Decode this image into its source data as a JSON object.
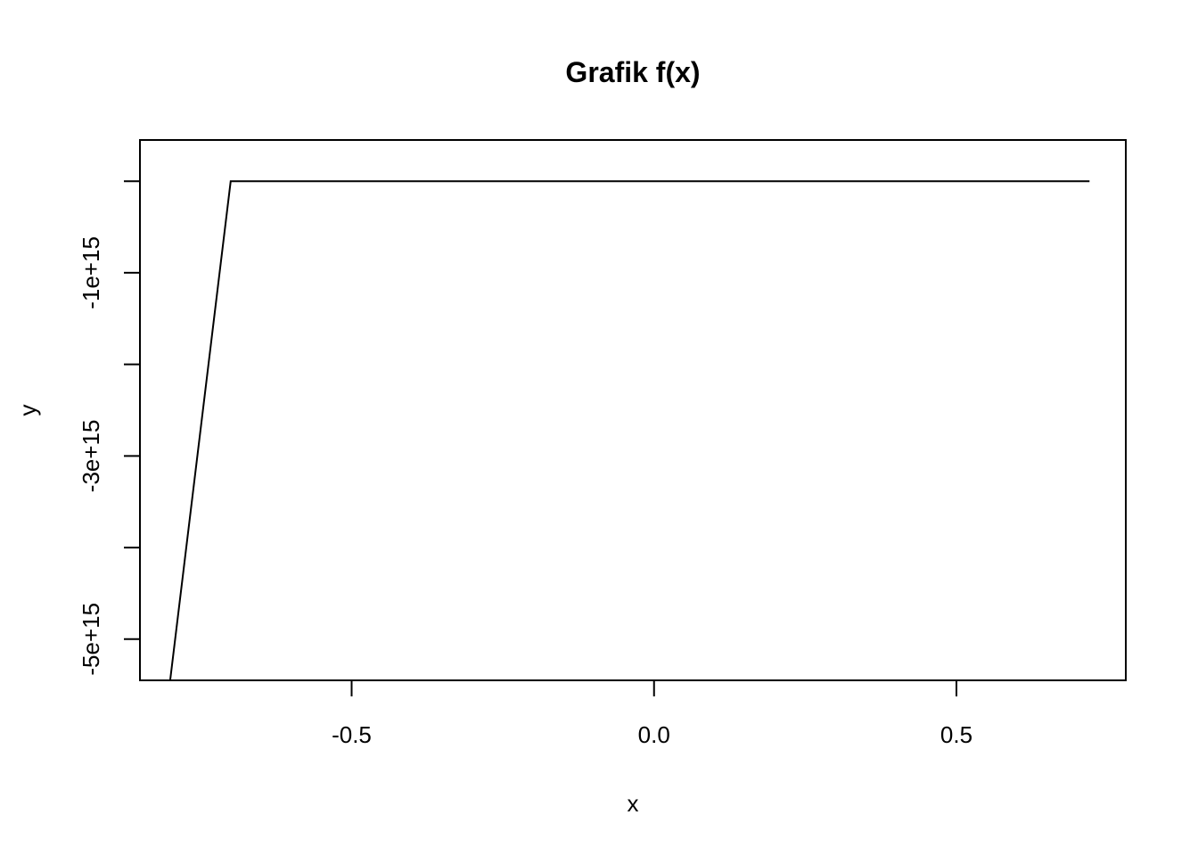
{
  "chart_data": {
    "type": "line",
    "title": "Grafik f(x)",
    "xlabel": "x",
    "ylabel": "y",
    "xlim": [
      -0.85,
      0.78
    ],
    "ylim": [
      -5450000000000000.0,
      450000000000000.0
    ],
    "x_ticks": [
      {
        "value": -0.5,
        "label": "-0.5"
      },
      {
        "value": 0.0,
        "label": "0.0"
      },
      {
        "value": 0.5,
        "label": "0.5"
      }
    ],
    "y_ticks": [
      {
        "value": 0,
        "label": ""
      },
      {
        "value": -1000000000000000.0,
        "label": "-1e+15"
      },
      {
        "value": -2000000000000000.0,
        "label": ""
      },
      {
        "value": -3000000000000000.0,
        "label": "-3e+15"
      },
      {
        "value": -4000000000000000.0,
        "label": ""
      },
      {
        "value": -5000000000000000.0,
        "label": "-5e+15"
      }
    ],
    "grid": false,
    "legend": "none",
    "series": [
      {
        "color": "#000000",
        "x": [
          -0.8,
          -0.7,
          0.72
        ],
        "y": [
          -5450000000000000.0,
          0,
          0
        ]
      }
    ]
  }
}
